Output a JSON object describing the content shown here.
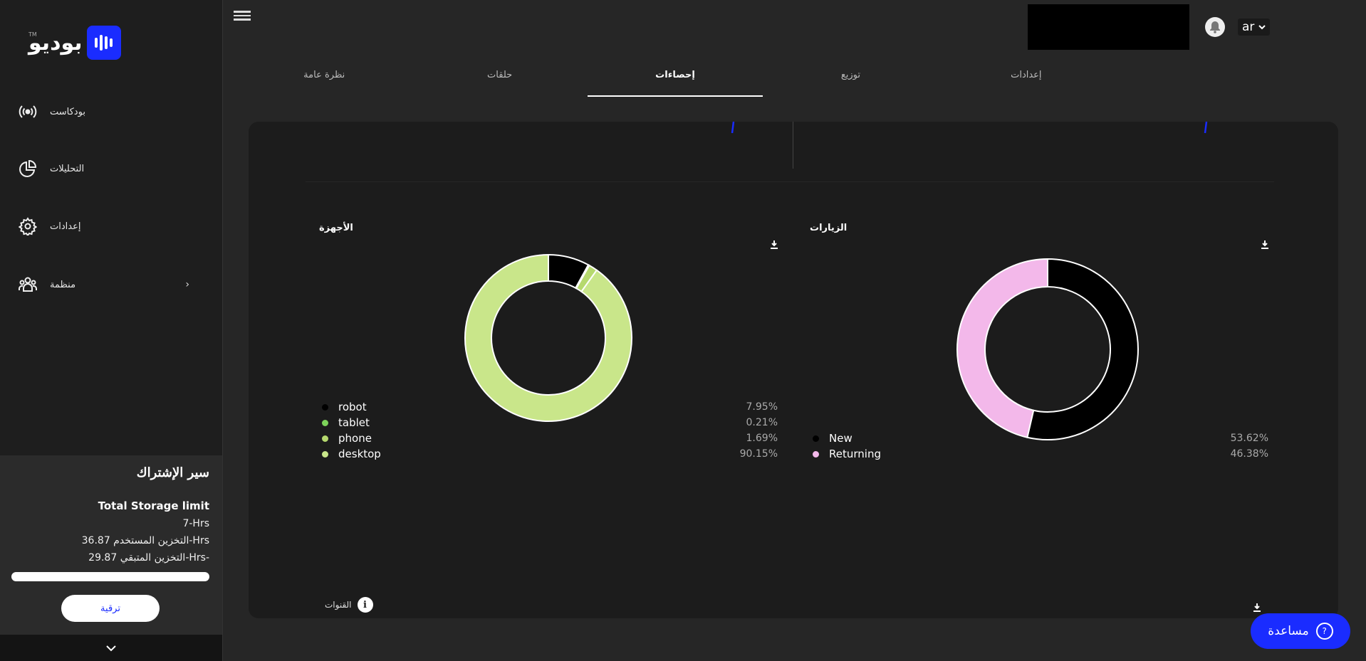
{
  "brand": {
    "name": "بوديو",
    "tm": "TM",
    "accent": "#1a2cff"
  },
  "sidebar": {
    "items": [
      {
        "label": "بودكاست",
        "icon": "broadcast-icon"
      },
      {
        "label": "التحليلات",
        "icon": "pie-chart-icon"
      },
      {
        "label": "إعدادات",
        "icon": "gear-icon"
      },
      {
        "label": "منظمة",
        "icon": "team-icon"
      }
    ]
  },
  "subscription": {
    "title": "سير الإشتراك",
    "storage_limit_label": "Total Storage limit",
    "limit_value": "7-Hrs",
    "used": "التخزين المستخدم 36.87-Hrs",
    "remaining": "التخزين المتبقي 29.87-Hrs-",
    "progress_fraction": 1.0,
    "upgrade_label": "ترقية"
  },
  "header": {
    "lang": "ar"
  },
  "tabs": [
    {
      "label": "نظرة عامة",
      "active": false
    },
    {
      "label": "حلقات",
      "active": false
    },
    {
      "label": "إحصاءات",
      "active": true
    },
    {
      "label": "توزيع",
      "active": false
    },
    {
      "label": "إعدادات",
      "active": false
    }
  ],
  "devices": {
    "title": "الأجهزة",
    "legend": [
      {
        "name": "robot",
        "pct": "7.95%",
        "color": "#000000"
      },
      {
        "name": "tablet",
        "pct": "0.21%",
        "color": "#7dd35a"
      },
      {
        "name": "phone",
        "pct": "1.69%",
        "color": "#b6d96e"
      },
      {
        "name": "desktop",
        "pct": "90.15%",
        "color": "#c9e68a"
      }
    ]
  },
  "visits": {
    "title": "الزيارات",
    "legend": [
      {
        "name": "New",
        "pct": "53.62%",
        "color": "#000000"
      },
      {
        "name": "Returning",
        "pct": "46.38%",
        "color": "#f3b8ea"
      }
    ]
  },
  "channels": {
    "label": "القنوات"
  },
  "help": {
    "label": "مساعدة"
  },
  "chart_data": [
    {
      "type": "pie",
      "title": "الأجهزة",
      "categories": [
        "robot",
        "tablet",
        "phone",
        "desktop"
      ],
      "values": [
        7.95,
        0.21,
        1.69,
        90.15
      ],
      "colors": [
        "#000000",
        "#7dd35a",
        "#b6d96e",
        "#c9e68a"
      ]
    },
    {
      "type": "pie",
      "title": "الزيارات",
      "categories": [
        "New",
        "Returning"
      ],
      "values": [
        53.62,
        46.38
      ],
      "colors": [
        "#000000",
        "#f3b8ea"
      ]
    }
  ]
}
